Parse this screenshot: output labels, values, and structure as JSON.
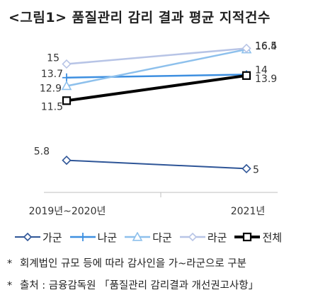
{
  "title": "<그림1> 품질관리 감리 결과 평균 지적건수",
  "chart_data": {
    "type": "line",
    "x": [
      "2019년~2020년",
      "2021년"
    ],
    "ylim": [
      3,
      17.2
    ],
    "grid": false,
    "legend_position": "bottom",
    "series": [
      {
        "name": "가군",
        "values": [
          5.8,
          5
        ],
        "labels": [
          "5.8",
          "5"
        ],
        "color": "#2e5597",
        "marker": "diamond",
        "width": 2
      },
      {
        "name": "나군",
        "values": [
          13.7,
          14
        ],
        "labels": [
          "13.7",
          "14"
        ],
        "color": "#3d8fe0",
        "marker": "plus",
        "width": 2.5
      },
      {
        "name": "다군",
        "values": [
          12.9,
          16.4
        ],
        "labels": [
          "12.9",
          "16.4"
        ],
        "color": "#8dc0ec",
        "marker": "triangle",
        "width": 2.5
      },
      {
        "name": "라군",
        "values": [
          15,
          16.5
        ],
        "labels": [
          "15",
          "16.5"
        ],
        "color": "#b7c4e6",
        "marker": "diamond",
        "width": 2.5
      },
      {
        "name": "전체",
        "values": [
          11.5,
          13.9
        ],
        "labels": [
          "11.5",
          "13.9"
        ],
        "color": "#000000",
        "marker": "square",
        "width": 4
      }
    ]
  },
  "notes": [
    {
      "mark": "*",
      "text": "회계법인 규모 등에 따라 감사인을 가~라군으로 구분"
    },
    {
      "mark": "*",
      "text": "출처 : 금융감독원 「품질관리 감리결과 개선권고사항」"
    }
  ]
}
